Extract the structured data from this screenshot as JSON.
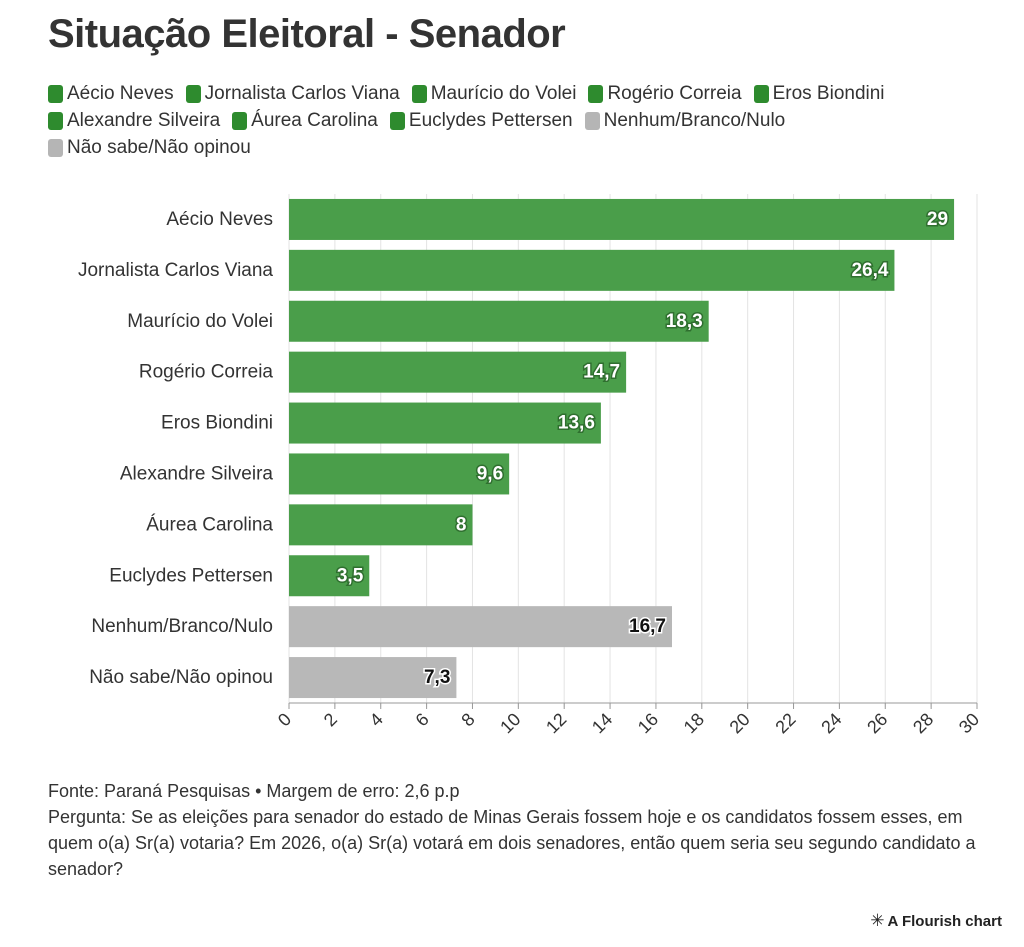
{
  "title": "Situação Eleitoral - Senador",
  "legend": [
    {
      "label": "Aécio Neves",
      "color": "#2e8b2e"
    },
    {
      "label": "Jornalista Carlos Viana",
      "color": "#2e8b2e"
    },
    {
      "label": "Maurício do Volei",
      "color": "#2e8b2e"
    },
    {
      "label": "Rogério Correia",
      "color": "#2e8b2e"
    },
    {
      "label": "Eros Biondini",
      "color": "#2e8b2e"
    },
    {
      "label": "Alexandre Silveira",
      "color": "#2e8b2e"
    },
    {
      "label": "Áurea Carolina",
      "color": "#2e8b2e"
    },
    {
      "label": "Euclydes Pettersen",
      "color": "#2e8b2e"
    },
    {
      "label": "Nenhum/Branco/Nulo",
      "color": "#b5b5b5"
    },
    {
      "label": "Não sabe/Não opinou",
      "color": "#b5b5b5"
    }
  ],
  "chart_data": {
    "type": "bar",
    "orientation": "horizontal",
    "categories": [
      "Aécio Neves",
      "Jornalista Carlos Viana",
      "Maurício do Volei",
      "Rogério Correia",
      "Eros Biondini",
      "Alexandre Silveira",
      "Áurea Carolina",
      "Euclydes Pettersen",
      "Nenhum/Branco/Nulo",
      "Não sabe/Não opinou"
    ],
    "values": [
      29,
      26.4,
      18.3,
      14.7,
      13.6,
      9.6,
      8,
      3.5,
      16.7,
      7.3
    ],
    "value_labels": [
      "29",
      "26,4",
      "18,3",
      "14,7",
      "13,6",
      "9,6",
      "8",
      "3,5",
      "16,7",
      "7,3"
    ],
    "colors": [
      "#4a9e4a",
      "#4a9e4a",
      "#4a9e4a",
      "#4a9e4a",
      "#4a9e4a",
      "#4a9e4a",
      "#4a9e4a",
      "#4a9e4a",
      "#b8b8b8",
      "#b8b8b8"
    ],
    "label_colors": [
      "#ffffff",
      "#ffffff",
      "#ffffff",
      "#ffffff",
      "#ffffff",
      "#ffffff",
      "#ffffff",
      "#ffffff",
      "#111111",
      "#111111"
    ],
    "xlim": [
      0,
      30
    ],
    "xticks": [
      0,
      2,
      4,
      6,
      8,
      10,
      12,
      14,
      16,
      18,
      20,
      22,
      24,
      26,
      28,
      30
    ],
    "grid": true,
    "legend_position": "top"
  },
  "footer": {
    "source": "Fonte: Paraná Pesquisas • Margem de erro: 2,6 p.p",
    "question": "Pergunta: Se as eleições para senador do estado de Minas Gerais fossem hoje e os candidatos fossem esses, em quem o(a) Sr(a) votaria? Em 2026, o(a) Sr(a) votará em dois senadores, então quem seria seu segundo candidato a senador?"
  },
  "credit": "A Flourish chart",
  "credit_icon": "asterisk-icon"
}
